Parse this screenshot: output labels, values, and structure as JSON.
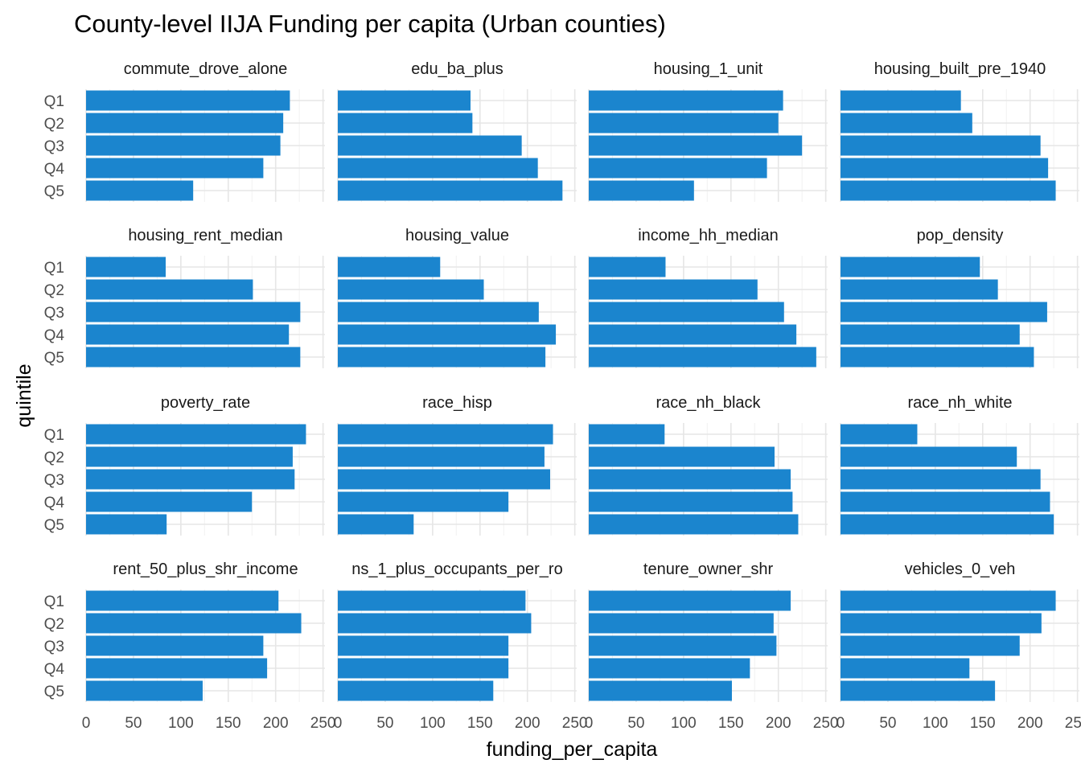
{
  "chart_data": {
    "type": "bar",
    "orientation": "horizontal",
    "facets": "4x4",
    "title": "County-level IIJA Funding per capita (Urban counties)",
    "xlabel": "funding_per_capita",
    "ylabel": "quintile",
    "categories": [
      "Q1",
      "Q2",
      "Q3",
      "Q4",
      "Q5"
    ],
    "x_ticks": [
      0,
      50,
      100,
      150,
      200,
      250
    ],
    "xlim": [
      0,
      252
    ],
    "grid": true,
    "bar_color": "#1b85ce",
    "panels": [
      {
        "name": "commute_drove_alone",
        "values": [
          215,
          208,
          205,
          187,
          113
        ]
      },
      {
        "name": "edu_ba_plus",
        "values": [
          140,
          142,
          194,
          211,
          237
        ]
      },
      {
        "name": "housing_1_unit",
        "values": [
          205,
          200,
          225,
          188,
          111
        ]
      },
      {
        "name": "housing_built_pre_1940",
        "values": [
          127,
          139,
          211,
          219,
          227
        ]
      },
      {
        "name": "housing_rent_median",
        "values": [
          84,
          176,
          226,
          214,
          226
        ]
      },
      {
        "name": "housing_value",
        "values": [
          108,
          154,
          212,
          230,
          219
        ]
      },
      {
        "name": "income_hh_median",
        "values": [
          81,
          178,
          206,
          219,
          240
        ]
      },
      {
        "name": "pop_density",
        "values": [
          147,
          166,
          218,
          189,
          204
        ]
      },
      {
        "name": "poverty_rate",
        "values": [
          232,
          218,
          220,
          175,
          85
        ]
      },
      {
        "name": "race_hisp",
        "values": [
          227,
          218,
          224,
          180,
          80
        ]
      },
      {
        "name": "race_nh_black",
        "values": [
          80,
          196,
          213,
          215,
          221
        ]
      },
      {
        "name": "race_nh_white",
        "values": [
          81,
          186,
          211,
          221,
          225
        ]
      },
      {
        "name": "rent_50_plus_shr_income",
        "values": [
          203,
          227,
          187,
          191,
          123
        ]
      },
      {
        "name": "ns_1_plus_occupants_per_ro",
        "values": [
          198,
          204,
          180,
          180,
          164
        ]
      },
      {
        "name": "tenure_owner_shr",
        "values": [
          213,
          195,
          198,
          170,
          151
        ]
      },
      {
        "name": "vehicles_0_veh",
        "values": [
          227,
          212,
          189,
          136,
          163
        ]
      }
    ]
  }
}
